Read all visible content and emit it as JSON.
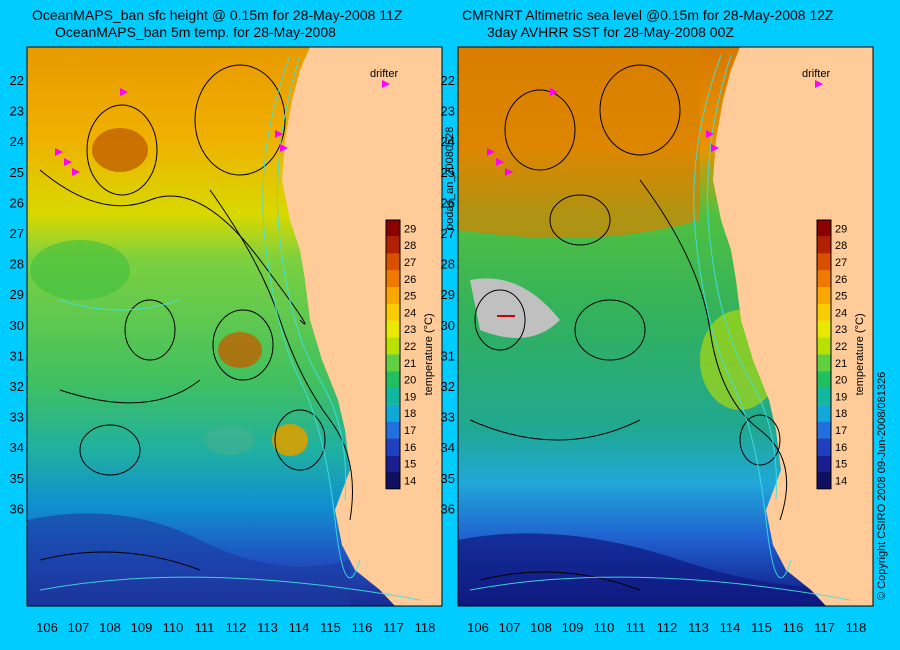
{
  "left_panel": {
    "title1": "OceanMAPS_ban sfc height @ 0.15m for 28-May-2008 11Z",
    "title2": "OceanMAPS_ban 5m temp. for 28-May-2008",
    "drifter_label": "drifter"
  },
  "right_panel": {
    "title1": "CMRNRT Altimetric sea level  @0.15m  for 28-May-2008 12Z",
    "title2": "3day AVHRR SST for 28-May-2008 00Z",
    "drifter_label": "drifter"
  },
  "colorbar": {
    "label": "temperature (°C)",
    "ticks": [
      "29",
      "28",
      "27",
      "26",
      "25",
      "24",
      "23",
      "22",
      "21",
      "20",
      "19",
      "18",
      "17",
      "16",
      "15",
      "14"
    ],
    "colors": [
      "#8b0000",
      "#b22000",
      "#d95000",
      "#f07a00",
      "#f8a600",
      "#f8cc00",
      "#e8e800",
      "#b8e000",
      "#60d040",
      "#20c060",
      "#10b8a0",
      "#10a8d8",
      "#2070e0",
      "#2040c0",
      "#1a1f90",
      "#101060"
    ]
  },
  "axes": {
    "lat_labels": [
      "22",
      "23",
      "24",
      "25",
      "26",
      "27",
      "28",
      "29",
      "30",
      "31",
      "32",
      "33",
      "34",
      "35",
      "36"
    ],
    "lon_labels": [
      "106",
      "107",
      "108",
      "109",
      "110",
      "111",
      "112",
      "113",
      "114",
      "115",
      "116",
      "117",
      "118"
    ]
  },
  "side_labels": {
    "left_vertical": "bodas_an_20080528",
    "right_vertical": "© Copyright CSIRO 2008    09-Jun-2008/081326"
  },
  "colors": {
    "background": "#00ccff",
    "land": "#ffcc99",
    "drifter": "#ff00ff"
  }
}
